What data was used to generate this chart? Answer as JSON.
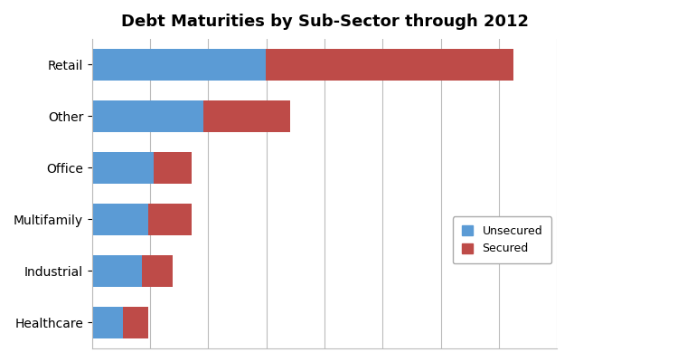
{
  "title": "Debt Maturities by Sub-Sector through 2012",
  "categories": [
    "Retail",
    "Other",
    "Office",
    "Multifamily",
    "Industrial",
    "Healthcare"
  ],
  "unsecured": [
    28,
    18,
    10,
    9,
    8,
    5
  ],
  "secured": [
    40,
    14,
    6,
    7,
    5,
    4
  ],
  "unsecured_color": "#5B9BD5",
  "secured_color": "#BE4B48",
  "background_color": "#FFFFFF",
  "grid_color": "#BBBBBB",
  "title_fontsize": 13,
  "label_fontsize": 10,
  "legend_labels": [
    "Unsecured",
    "Secured"
  ],
  "bar_height": 0.6,
  "xlim_max": 75
}
